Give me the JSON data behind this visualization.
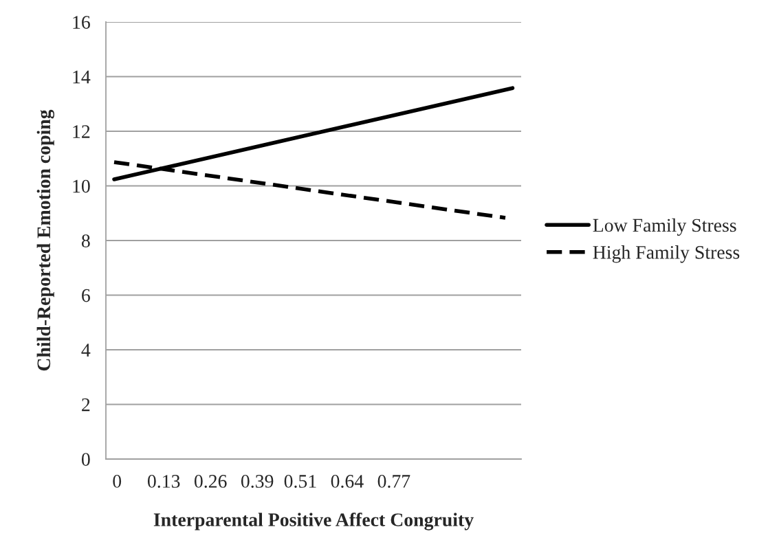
{
  "chart_data": {
    "type": "line",
    "xlabel": "Interparental Positive Affect Congruity",
    "ylabel": "Child-Reported Emotion coping",
    "xlim": [
      -0.031,
      1.124
    ],
    "xticks": [
      0,
      0.13,
      0.26,
      0.39,
      0.51,
      0.64,
      0.77
    ],
    "ylim": [
      0,
      16
    ],
    "yticks": [
      0,
      2,
      4,
      6,
      8,
      10,
      12,
      14,
      16
    ],
    "grid": "y",
    "legend": "right",
    "marker": "none",
    "series": [
      {
        "name": "Low Family Stress",
        "color": "#000000",
        "line_style": "solid",
        "x": [
          -0.008,
          1.1
        ],
        "values": [
          10.24,
          13.58
        ]
      },
      {
        "name": "High Family Stress",
        "color": "#000000",
        "line_style": "dashed",
        "x": [
          -0.008,
          1.08
        ],
        "values": [
          10.87,
          8.83
        ]
      }
    ]
  }
}
